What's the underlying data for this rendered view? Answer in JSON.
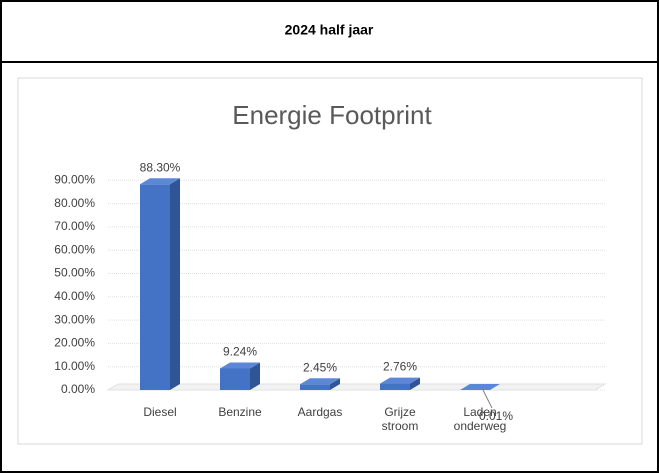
{
  "header": {
    "title": "2024 half jaar"
  },
  "chart_data": {
    "type": "bar3d",
    "title": "Energie Footprint",
    "categories": [
      "Diesel",
      "Benzine",
      "Aardgas",
      "Grijze stroom",
      "Laden onderweg"
    ],
    "values": [
      88.3,
      9.24,
      2.45,
      2.76,
      0.01
    ],
    "value_labels": [
      "88.30%",
      "9.24%",
      "2.45%",
      "2.76%",
      "0.01%"
    ],
    "color": "#4472c4",
    "ylim": [
      0,
      100
    ],
    "yticks": [
      {
        "value": 0,
        "label": "0.00%"
      },
      {
        "value": 10,
        "label": "10.00%"
      },
      {
        "value": 20,
        "label": "20.00%"
      },
      {
        "value": 30,
        "label": "30.00%"
      },
      {
        "value": 40,
        "label": "40.00%"
      },
      {
        "value": 50,
        "label": "50.00%"
      },
      {
        "value": 60,
        "label": "60.00%"
      },
      {
        "value": 70,
        "label": "70.00%"
      },
      {
        "value": 80,
        "label": "80.00%"
      },
      {
        "value": 90,
        "label": "90.00%"
      }
    ],
    "grid": true
  }
}
